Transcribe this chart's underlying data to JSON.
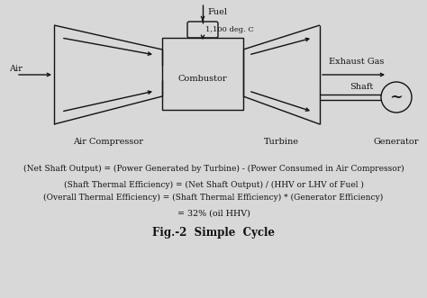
{
  "bg_color": "#d8d8d8",
  "line_color": "#111111",
  "title": "Fig.-2  Simple  Cycle",
  "equation1": "(Net Shaft Output) = (Power Generated by Turbine) - (Power Consumed in Air Compressor)",
  "equation2": "(Shaft Thermal Efficiency) = (Net Shaft Output) / (HHV or LHV of Fuel )",
  "equation3": "(Overall Thermal Efficiency) = (Shaft Thermal Efficiency) * (Generator Efficiency)",
  "equation4": "= 32% (oil HHV)",
  "label_air": "Air",
  "label_exhaust": "Exhaust Gas",
  "label_fuel": "Fuel",
  "label_temp": "1,100 deg. C",
  "label_combustor": "Combustor",
  "label_shaft": "Shaft",
  "label_compressor": "Air Compressor",
  "label_turbine": "Turbine",
  "label_generator": "Generator",
  "figsize": [
    4.74,
    3.31
  ],
  "dpi": 100
}
